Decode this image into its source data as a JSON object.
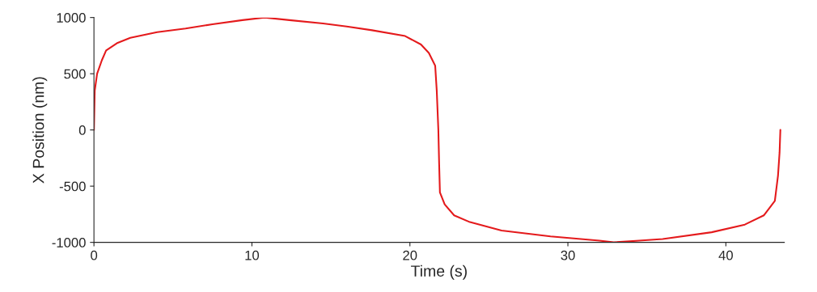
{
  "chart_data": {
    "type": "line",
    "xlabel": "Time (s)",
    "ylabel": "X Position (nm)",
    "xlim": [
      0,
      43.7
    ],
    "ylim": [
      -1000,
      1000
    ],
    "xticks": [
      0,
      10,
      20,
      30,
      40
    ],
    "yticks": [
      -1000,
      -500,
      0,
      500,
      1000
    ],
    "grid": false,
    "marker": "none",
    "line_style": "solid",
    "series": [
      {
        "color": "#e41a1c",
        "x": [
          0,
          0.05,
          0.2,
          0.5,
          0.77,
          1.5,
          2.3,
          4,
          5.8,
          7.5,
          9.4,
          10.8,
          12.5,
          14.5,
          16,
          17.6,
          19.7,
          20.7,
          21.2,
          21.6,
          21.7,
          21.8,
          21.85,
          21.9,
          22.2,
          22.8,
          23.8,
          25.8,
          28.9,
          32,
          32.9,
          34.5,
          36,
          39.1,
          41.2,
          42.4,
          43.1,
          43.3,
          43.4,
          43.45
        ],
        "values": [
          0,
          350,
          500,
          620,
          707,
          775,
          820,
          870,
          902,
          940,
          977,
          1000,
          975,
          947,
          920,
          887,
          835,
          760,
          684,
          571,
          346,
          0,
          -300,
          -556,
          -662,
          -760,
          -820,
          -895,
          -947,
          -985,
          -1000,
          -985,
          -970,
          -910,
          -842,
          -760,
          -632,
          -406,
          -200,
          0
        ]
      }
    ]
  }
}
